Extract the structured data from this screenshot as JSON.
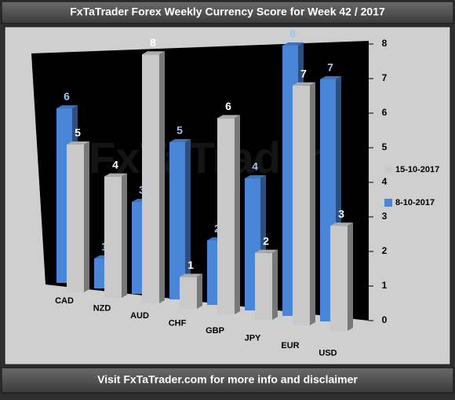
{
  "chart_data": {
    "type": "bar3d",
    "title": "FxTaTrader Forex Weekly Currency Score for Week 42 / 2017",
    "watermark": "FxTaTrader",
    "footer": "Visit FxTaTrader.com for more info and disclaimer",
    "categories": [
      "CAD",
      "NZD",
      "AUD",
      "CHF",
      "GBP",
      "JPY",
      "EUR",
      "USD"
    ],
    "series": [
      {
        "name": "8-10-2017",
        "color": "#4a86d8",
        "label_color": "#9cc3f2",
        "values": [
          6,
          1,
          3,
          5,
          2,
          4,
          8,
          7
        ]
      },
      {
        "name": "15-10-2017",
        "color": "#c9c9c9",
        "label_color": "#ffffff",
        "values": [
          5,
          4,
          8,
          1,
          6,
          2,
          7,
          3
        ]
      }
    ],
    "ylim": [
      0,
      8
    ],
    "yticks": [
      0,
      1,
      2,
      3,
      4,
      5,
      6,
      7,
      8
    ]
  }
}
